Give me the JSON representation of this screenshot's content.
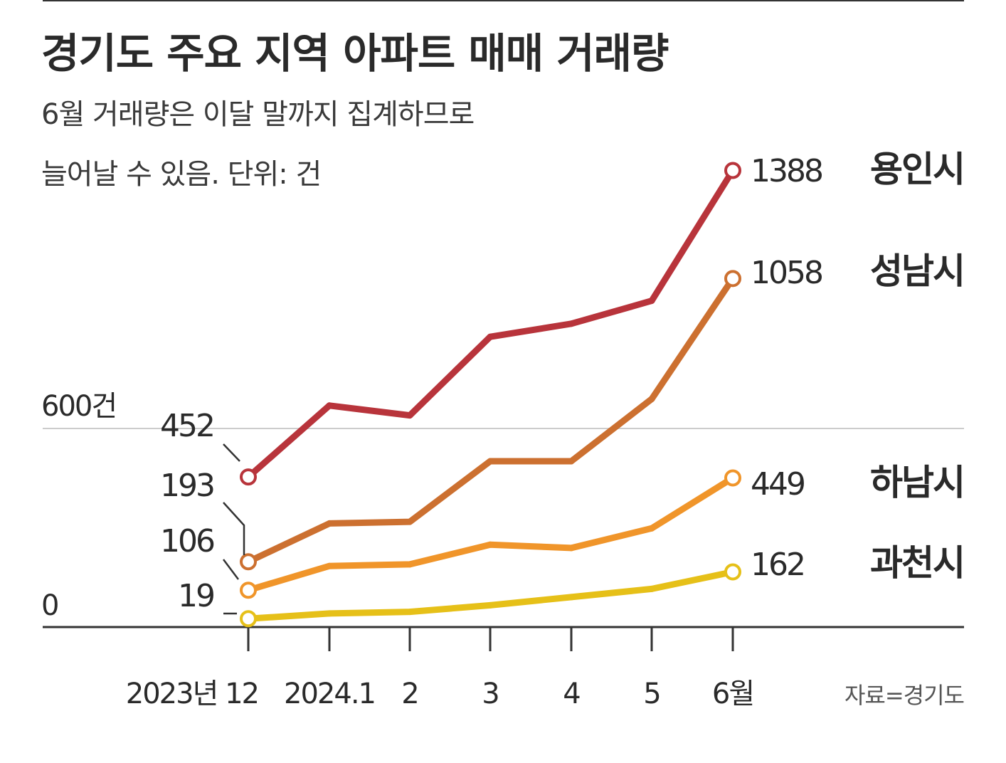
{
  "header": {
    "title": "경기도 주요 지역 아파트 매매 거래량",
    "subtitle_line1": "6월 거래량은 이달 말까지 집계하므로",
    "subtitle_line2": "늘어날 수 있음. 단위: 건"
  },
  "source": "자료=경기도",
  "colors": {
    "yongin": "#b8343b",
    "seongnam": "#cc7030",
    "hanam": "#f0952a",
    "gwacheon": "#e6c018",
    "axis": "#333333",
    "gridline": "#cccccc"
  },
  "chart_data": {
    "type": "line",
    "title": "경기도 주요 지역 아파트 매매 거래량",
    "subtitle": "6월 거래량은 이달 말까지 집계하므로 늘어날 수 있음. 단위: 건",
    "categories": [
      "2023년 12",
      "2024.1",
      "2",
      "3",
      "4",
      "5",
      "6월"
    ],
    "ylim": [
      0,
      1450
    ],
    "y_ticks": [
      {
        "value": 0,
        "label": "0"
      },
      {
        "value": 600,
        "label": "600건"
      }
    ],
    "grid": "horizontal line at 600",
    "series": [
      {
        "name": "용인시",
        "key": "yongin",
        "values": [
          452,
          670,
          640,
          880,
          920,
          990,
          1388
        ],
        "start_label": "452",
        "end_label": "1388"
      },
      {
        "name": "성남시",
        "key": "seongnam",
        "values": [
          193,
          310,
          315,
          500,
          500,
          690,
          1058
        ],
        "start_label": "193",
        "end_label": "1058"
      },
      {
        "name": "하남시",
        "key": "hanam",
        "values": [
          106,
          180,
          185,
          245,
          235,
          295,
          449
        ],
        "start_label": "106",
        "end_label": "449"
      },
      {
        "name": "과천시",
        "key": "gwacheon",
        "values": [
          19,
          35,
          40,
          60,
          85,
          110,
          162
        ],
        "start_label": "19",
        "end_label": "162"
      }
    ]
  }
}
